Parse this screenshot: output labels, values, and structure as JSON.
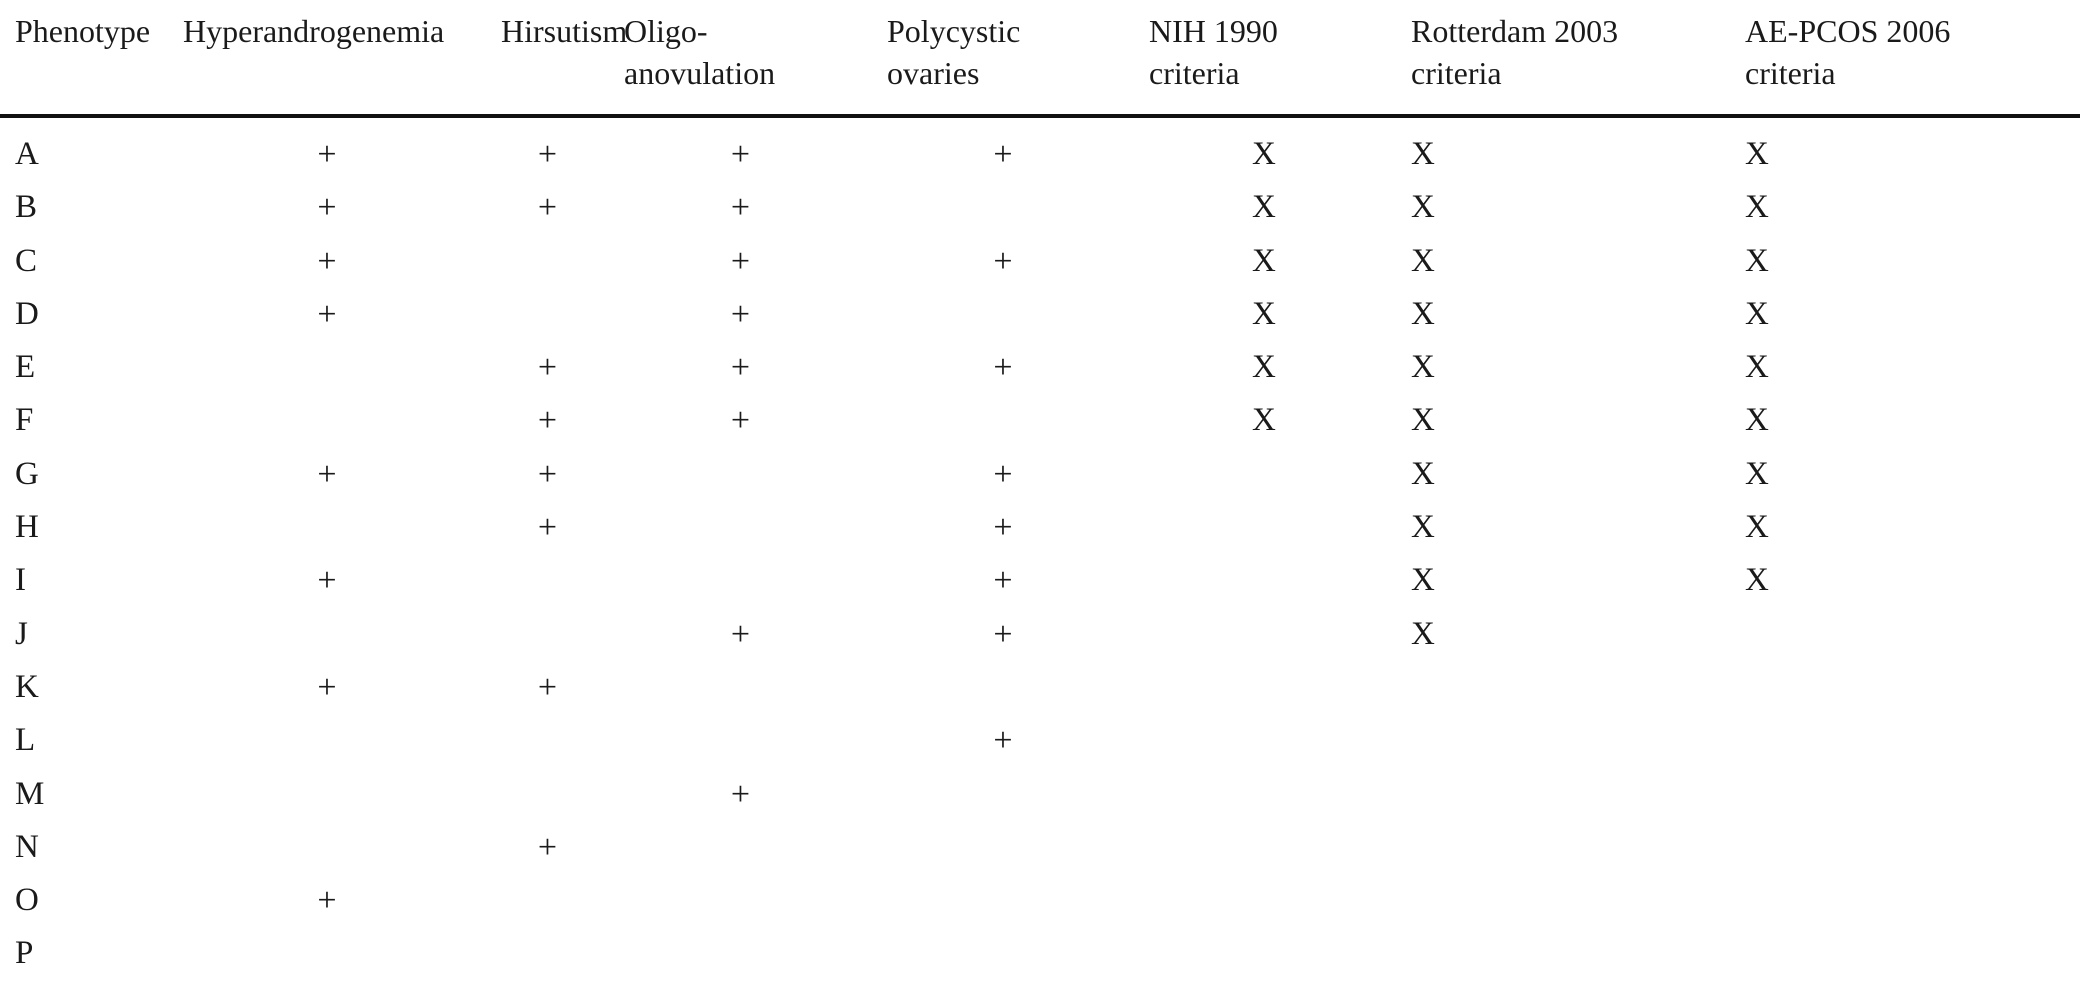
{
  "table": {
    "headers": {
      "phenotype": "Phenotype",
      "hyperandrogenemia": "Hyperandrogenemia",
      "hirsutism": "Hirsutism",
      "oligo_anovulation": "Oligo-anovulation",
      "polycystic_ovaries": "Polycystic ovaries",
      "nih_1990": "NIH 1990 criteria",
      "rotterdam_2003": "Rotterdam 2003 criteria",
      "ae_pcos_2006": "AE-PCOS 2006 criteria"
    },
    "rows": [
      {
        "phenotype": "A",
        "hyperandrogenemia": "+",
        "hirsutism": "+",
        "oligo_anovulation": "+",
        "polycystic_ovaries": "+",
        "nih_1990": "X",
        "rotterdam_2003": "X",
        "ae_pcos_2006": "X"
      },
      {
        "phenotype": "B",
        "hyperandrogenemia": "+",
        "hirsutism": "+",
        "oligo_anovulation": "+",
        "polycystic_ovaries": "",
        "nih_1990": "X",
        "rotterdam_2003": "X",
        "ae_pcos_2006": "X"
      },
      {
        "phenotype": "C",
        "hyperandrogenemia": "+",
        "hirsutism": "",
        "oligo_anovulation": "+",
        "polycystic_ovaries": "+",
        "nih_1990": "X",
        "rotterdam_2003": "X",
        "ae_pcos_2006": "X"
      },
      {
        "phenotype": "D",
        "hyperandrogenemia": "+",
        "hirsutism": "",
        "oligo_anovulation": "+",
        "polycystic_ovaries": "",
        "nih_1990": "X",
        "rotterdam_2003": "X",
        "ae_pcos_2006": "X"
      },
      {
        "phenotype": "E",
        "hyperandrogenemia": "",
        "hirsutism": "+",
        "oligo_anovulation": "+",
        "polycystic_ovaries": "+",
        "nih_1990": "X",
        "rotterdam_2003": "X",
        "ae_pcos_2006": "X"
      },
      {
        "phenotype": "F",
        "hyperandrogenemia": "",
        "hirsutism": "+",
        "oligo_anovulation": "+",
        "polycystic_ovaries": "",
        "nih_1990": "X",
        "rotterdam_2003": "X",
        "ae_pcos_2006": "X"
      },
      {
        "phenotype": "G",
        "hyperandrogenemia": "+",
        "hirsutism": "+",
        "oligo_anovulation": "",
        "polycystic_ovaries": "+",
        "nih_1990": "",
        "rotterdam_2003": "X",
        "ae_pcos_2006": "X"
      },
      {
        "phenotype": "H",
        "hyperandrogenemia": "",
        "hirsutism": "+",
        "oligo_anovulation": "",
        "polycystic_ovaries": "+",
        "nih_1990": "",
        "rotterdam_2003": "X",
        "ae_pcos_2006": "X"
      },
      {
        "phenotype": "I",
        "hyperandrogenemia": "+",
        "hirsutism": "",
        "oligo_anovulation": "",
        "polycystic_ovaries": "+",
        "nih_1990": "",
        "rotterdam_2003": "X",
        "ae_pcos_2006": "X"
      },
      {
        "phenotype": "J",
        "hyperandrogenemia": "",
        "hirsutism": "",
        "oligo_anovulation": "+",
        "polycystic_ovaries": "+",
        "nih_1990": "",
        "rotterdam_2003": "X",
        "ae_pcos_2006": ""
      },
      {
        "phenotype": "K",
        "hyperandrogenemia": "+",
        "hirsutism": "+",
        "oligo_anovulation": "",
        "polycystic_ovaries": "",
        "nih_1990": "",
        "rotterdam_2003": "",
        "ae_pcos_2006": ""
      },
      {
        "phenotype": "L",
        "hyperandrogenemia": "",
        "hirsutism": "",
        "oligo_anovulation": "",
        "polycystic_ovaries": "+",
        "nih_1990": "",
        "rotterdam_2003": "",
        "ae_pcos_2006": ""
      },
      {
        "phenotype": "M",
        "hyperandrogenemia": "",
        "hirsutism": "",
        "oligo_anovulation": "+",
        "polycystic_ovaries": "",
        "nih_1990": "",
        "rotterdam_2003": "",
        "ae_pcos_2006": ""
      },
      {
        "phenotype": "N",
        "hyperandrogenemia": "",
        "hirsutism": "+",
        "oligo_anovulation": "",
        "polycystic_ovaries": "",
        "nih_1990": "",
        "rotterdam_2003": "",
        "ae_pcos_2006": ""
      },
      {
        "phenotype": "O",
        "hyperandrogenemia": "+",
        "hirsutism": "",
        "oligo_anovulation": "",
        "polycystic_ovaries": "",
        "nih_1990": "",
        "rotterdam_2003": "",
        "ae_pcos_2006": ""
      },
      {
        "phenotype": "P",
        "hyperandrogenemia": "",
        "hirsutism": "",
        "oligo_anovulation": "",
        "polycystic_ovaries": "",
        "nih_1990": "",
        "rotterdam_2003": "",
        "ae_pcos_2006": ""
      }
    ]
  }
}
